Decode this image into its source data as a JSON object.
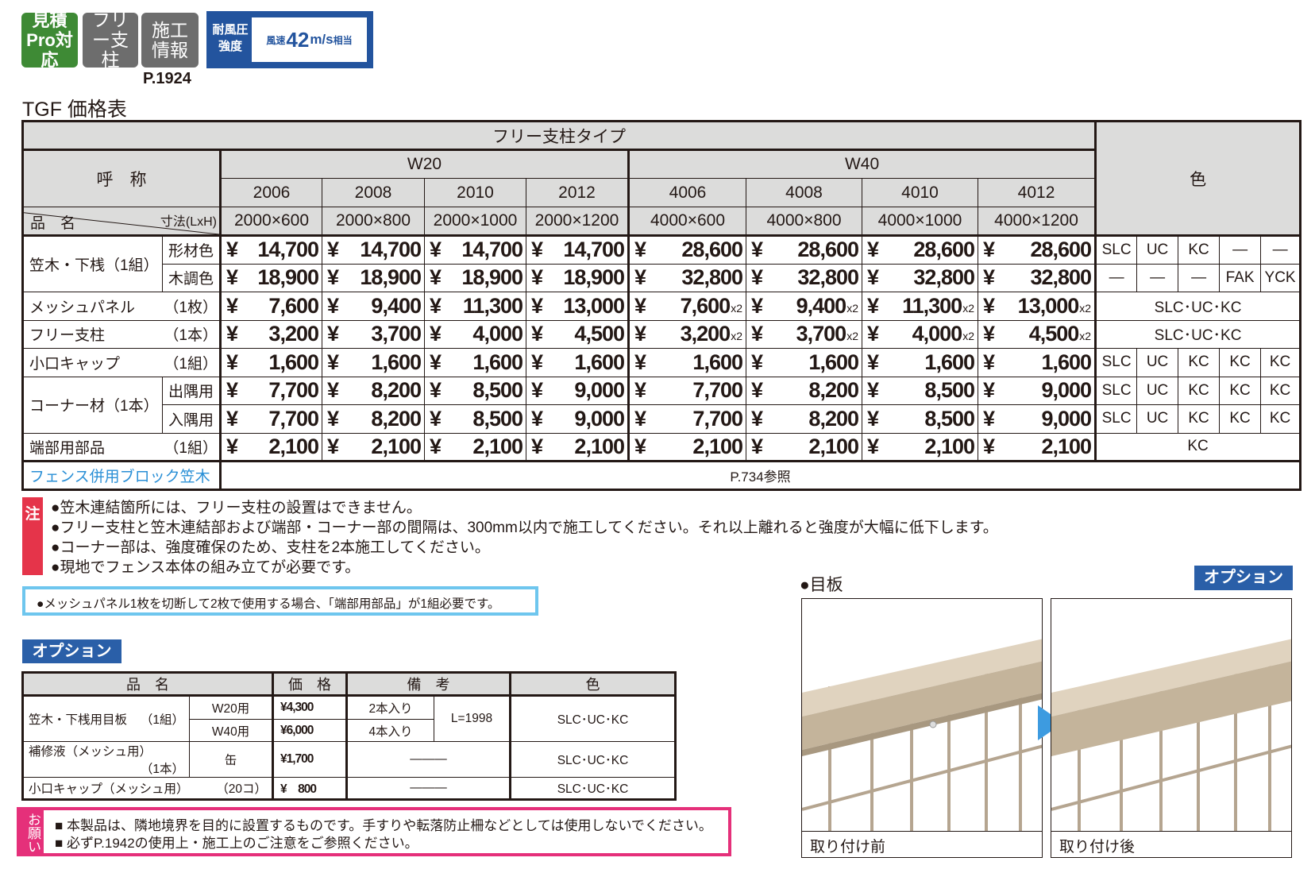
{
  "badges": {
    "estimate": "見積Pro対応",
    "free_post": "フリー支柱",
    "construction": "施工情報",
    "construction_page": "P.1924",
    "wind_label": "耐風圧強度",
    "wind_prefix": "風速",
    "wind_value": "42",
    "wind_unit": "m/s",
    "wind_suffix": "相当"
  },
  "title": "TGF 価格表",
  "main_table": {
    "type_header": "フリー支柱タイプ",
    "name_header": "呼　称",
    "color_header": "色",
    "item_header": "品　名",
    "size_header": "寸法(LxH)",
    "currency": "¥",
    "groups": [
      {
        "label": "W20",
        "models": [
          {
            "code": "2006",
            "size": "2000×600"
          },
          {
            "code": "2008",
            "size": "2000×800"
          },
          {
            "code": "2010",
            "size": "2000×1000"
          },
          {
            "code": "2012",
            "size": "2000×1200"
          }
        ]
      },
      {
        "label": "W40",
        "models": [
          {
            "code": "4006",
            "size": "4000×600"
          },
          {
            "code": "4008",
            "size": "4000×800"
          },
          {
            "code": "4010",
            "size": "4000×1000"
          },
          {
            "code": "4012",
            "size": "4000×1200"
          }
        ]
      }
    ],
    "rows": [
      {
        "name": "笠木・下桟（1組）",
        "variants": [
          {
            "label": "形材色",
            "prices": [
              "14,700",
              "14,700",
              "14,700",
              "14,700",
              "28,600",
              "28,600",
              "28,600",
              "28,600"
            ],
            "w40_multiplier": "",
            "colors": [
              "SLC",
              "UC",
              "KC",
              "—",
              "—"
            ]
          },
          {
            "label": "木調色",
            "prices": [
              "18,900",
              "18,900",
              "18,900",
              "18,900",
              "32,800",
              "32,800",
              "32,800",
              "32,800"
            ],
            "w40_multiplier": "",
            "colors": [
              "—",
              "—",
              "—",
              "FAK",
              "YCK"
            ]
          }
        ]
      },
      {
        "name": "メッシュパネル",
        "unit": "（1枚）",
        "variants": [
          {
            "prices": [
              "7,600",
              "9,400",
              "11,300",
              "13,000",
              "7,600",
              "9,400",
              "11,300",
              "13,000"
            ],
            "w40_multiplier": "x2",
            "colors": "SLC･UC･KC"
          }
        ]
      },
      {
        "name": "フリー支柱",
        "unit": "（1本）",
        "variants": [
          {
            "prices": [
              "3,200",
              "3,700",
              "4,000",
              "4,500",
              "3,200",
              "3,700",
              "4,000",
              "4,500"
            ],
            "w40_multiplier": "x2",
            "colors": "SLC･UC･KC"
          }
        ]
      },
      {
        "name": "小口キャップ",
        "unit": "（1組）",
        "variants": [
          {
            "prices": [
              "1,600",
              "1,600",
              "1,600",
              "1,600",
              "1,600",
              "1,600",
              "1,600",
              "1,600"
            ],
            "w40_multiplier": "",
            "colors": [
              "SLC",
              "UC",
              "KC",
              "KC",
              "KC"
            ]
          }
        ]
      },
      {
        "name": "コーナー材（1本）",
        "variants": [
          {
            "label": "出隅用",
            "prices": [
              "7,700",
              "8,200",
              "8,500",
              "9,000",
              "7,700",
              "8,200",
              "8,500",
              "9,000"
            ],
            "w40_multiplier": "",
            "colors": [
              "SLC",
              "UC",
              "KC",
              "KC",
              "KC"
            ]
          },
          {
            "label": "入隅用",
            "prices": [
              "7,700",
              "8,200",
              "8,500",
              "9,000",
              "7,700",
              "8,200",
              "8,500",
              "9,000"
            ],
            "w40_multiplier": "",
            "colors": [
              "SLC",
              "UC",
              "KC",
              "KC",
              "KC"
            ]
          }
        ]
      },
      {
        "name": "端部用部品",
        "unit": "（1組）",
        "variants": [
          {
            "prices": [
              "2,100",
              "2,100",
              "2,100",
              "2,100",
              "2,100",
              "2,100",
              "2,100",
              "2,100"
            ],
            "w40_multiplier": "",
            "colors": "KC"
          }
        ]
      }
    ],
    "block_row": {
      "label": "フェンス併用ブロック笠木",
      "value": "P.734参照",
      "label_color": "#2a8fd6"
    }
  },
  "notes": {
    "marker": "注",
    "lines": [
      "●笠木連結箇所には、フリー支柱の設置はできません。",
      "●フリー支柱と笠木連結部および端部・コーナー部の間隔は、300mm以内で施工してください。それ以上離れると強度が大幅に低下します。",
      "●コーナー部は、強度確保のため、支柱を2本施工してください。",
      "●現地でフェンス本体の組み立てが必要です。"
    ],
    "hint": "●メッシュパネル1枚を切断して2枚で使用する場合、「端部用部品」が1組必要です。"
  },
  "option": {
    "label": "オプション",
    "headers": [
      "品　名",
      "価　格",
      "備　考",
      "色"
    ],
    "rows": [
      {
        "name": "笠木・下桟用目板",
        "unit": "（1組）",
        "variants": [
          {
            "type": "W20用",
            "price": "¥4,300",
            "pack": "2本入り"
          },
          {
            "type": "W40用",
            "price": "¥6,000",
            "pack": "4本入り"
          }
        ],
        "remark": "L=1998",
        "color": "SLC･UC･KC"
      },
      {
        "name": "補修液（メッシュ用）",
        "unit": "（1本）",
        "type": "缶",
        "price": "¥1,700",
        "remark": "———",
        "color": "SLC･UC･KC"
      },
      {
        "name": "小口キャップ（メッシュ用）",
        "unit": "（20コ）",
        "price": "¥　800",
        "remark": "———",
        "color": "SLC･UC･KC"
      }
    ]
  },
  "request": {
    "marker": "お願い",
    "lines": [
      "■ 本製品は、隣地境界を目的に設置するものです。手すりや転落防止柵などとしては使用しないでください。",
      "■ 必ずP.1942の使用上・施工上のご注意をご参照ください。"
    ]
  },
  "meita": {
    "title": "●目板",
    "badge": "オプション",
    "before": "取り付け前",
    "after": "取り付け後",
    "arrow_color": "#3d9be0"
  },
  "colors": {
    "green": "#3e8a35",
    "gray": "#6d6d6d",
    "blue": "#23549e",
    "red": "#e5344a",
    "pink": "#e5307a",
    "cyan": "#6ec6ee"
  }
}
